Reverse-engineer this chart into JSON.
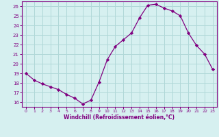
{
  "x": [
    0,
    1,
    2,
    3,
    4,
    5,
    6,
    7,
    8,
    9,
    10,
    11,
    12,
    13,
    14,
    15,
    16,
    17,
    18,
    19,
    20,
    21,
    22,
    23
  ],
  "y": [
    19,
    18.3,
    17.9,
    17.6,
    17.3,
    16.8,
    16.4,
    15.8,
    16.2,
    18.1,
    20.4,
    21.8,
    22.5,
    23.2,
    24.8,
    26.1,
    26.2,
    25.8,
    25.5,
    25.0,
    23.2,
    21.9,
    21.0,
    19.4
  ],
  "line_color": "#800080",
  "marker": "D",
  "marker_size": 2.2,
  "bg_color": "#d6f0f0",
  "grid_color": "#b0d8d8",
  "xlabel": "Windchill (Refroidissement éolien,°C)",
  "xlabel_color": "#800080",
  "tick_color": "#800080",
  "ylim": [
    15.5,
    26.5
  ],
  "xlim": [
    -0.5,
    23.5
  ],
  "yticks": [
    16,
    17,
    18,
    19,
    20,
    21,
    22,
    23,
    24,
    25,
    26
  ],
  "xticks": [
    0,
    1,
    2,
    3,
    4,
    5,
    6,
    7,
    8,
    9,
    10,
    11,
    12,
    13,
    14,
    15,
    16,
    17,
    18,
    19,
    20,
    21,
    22,
    23
  ]
}
